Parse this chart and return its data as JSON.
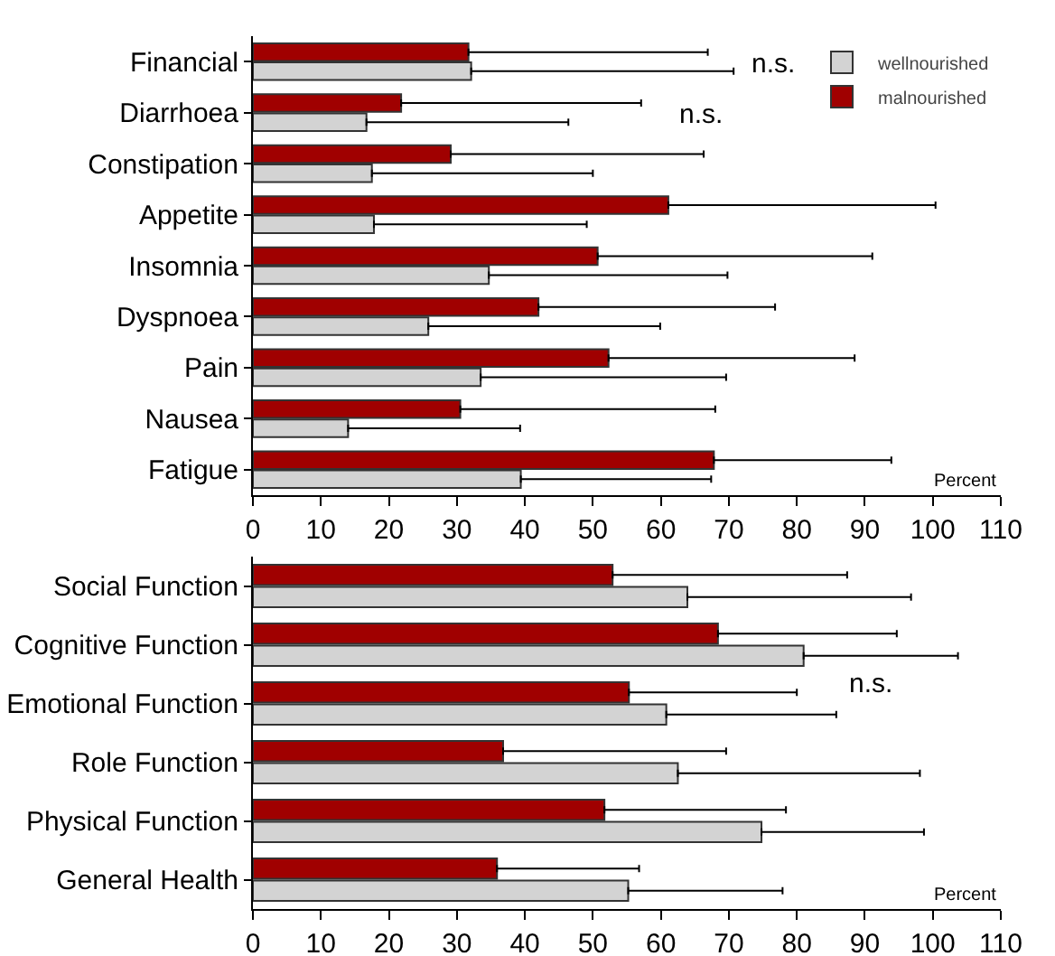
{
  "chart_data": [
    {
      "type": "bar",
      "orientation": "horizontal",
      "xlabel": "Percent",
      "categories": [
        "Financial",
        "Diarrhoea",
        "Constipation",
        "Appetite",
        "Insomnia",
        "Dyspnoea",
        "Pain",
        "Nausea",
        "Fatigue"
      ],
      "series": [
        {
          "name": "malnourished",
          "color": "#a00000",
          "values": [
            31.7,
            21.8,
            29.1,
            61.1,
            50.7,
            42,
            52.3,
            30.5,
            67.8
          ],
          "errors": [
            [
              31.7,
              66.9
            ],
            [
              21.8,
              57.1
            ],
            [
              29.1,
              66.3
            ],
            [
              61.1,
              100.4
            ],
            [
              50.7,
              91.1
            ],
            [
              42,
              76.8
            ],
            [
              52.3,
              88.5
            ],
            [
              30.5,
              68
            ],
            [
              67.8,
              93.9
            ]
          ]
        },
        {
          "name": "wellnourished",
          "color": "#d3d3d3",
          "values": [
            32.1,
            16.7,
            17.5,
            17.8,
            34.7,
            25.8,
            33.5,
            14,
            39.4
          ],
          "errors": [
            [
              32.1,
              70.7
            ],
            [
              16.7,
              46.4
            ],
            [
              17.5,
              50
            ],
            [
              17.8,
              49.1
            ],
            [
              34.7,
              69.8
            ],
            [
              25.8,
              59.9
            ],
            [
              33.5,
              69.6
            ],
            [
              14,
              39.3
            ],
            [
              39.4,
              67.4
            ]
          ]
        }
      ],
      "xlim": [
        0,
        110
      ],
      "xticks": [
        0,
        10,
        20,
        30,
        40,
        50,
        60,
        70,
        80,
        90,
        100,
        110
      ],
      "grid": false,
      "legend": "top right",
      "annotations": [
        "n.s.",
        "n.s."
      ]
    },
    {
      "type": "bar",
      "orientation": "horizontal",
      "xlabel": "Percent",
      "categories": [
        "Social Function",
        "Cognitive Function",
        "Emotional Function",
        "Role Function",
        "Physical Function",
        "General Health"
      ],
      "series": [
        {
          "color": "#a00000",
          "values": [
            52.9,
            68.4,
            55.3,
            36.8,
            51.7,
            35.9
          ],
          "errors": [
            [
              52.9,
              87.4
            ],
            [
              68.4,
              94.7
            ],
            [
              55.3,
              80
            ],
            [
              36.8,
              69.6
            ],
            [
              51.7,
              78.4
            ],
            [
              35.9,
              56.8
            ]
          ]
        },
        {
          "color": "#d3d3d3",
          "values": [
            63.9,
            81,
            60.8,
            62.5,
            74.8,
            55.2
          ],
          "errors": [
            [
              63.9,
              96.8
            ],
            [
              81,
              103.7
            ],
            [
              60.8,
              85.8
            ],
            [
              62.5,
              98.1
            ],
            [
              74.8,
              98.7
            ],
            [
              55.2,
              77.9
            ]
          ]
        }
      ],
      "xlim": [
        0,
        110
      ],
      "xticks": [
        0,
        10,
        20,
        30,
        40,
        50,
        60,
        70,
        80,
        90,
        100,
        110
      ],
      "grid": false,
      "legend": false,
      "annotations": [
        "n.s."
      ]
    }
  ]
}
